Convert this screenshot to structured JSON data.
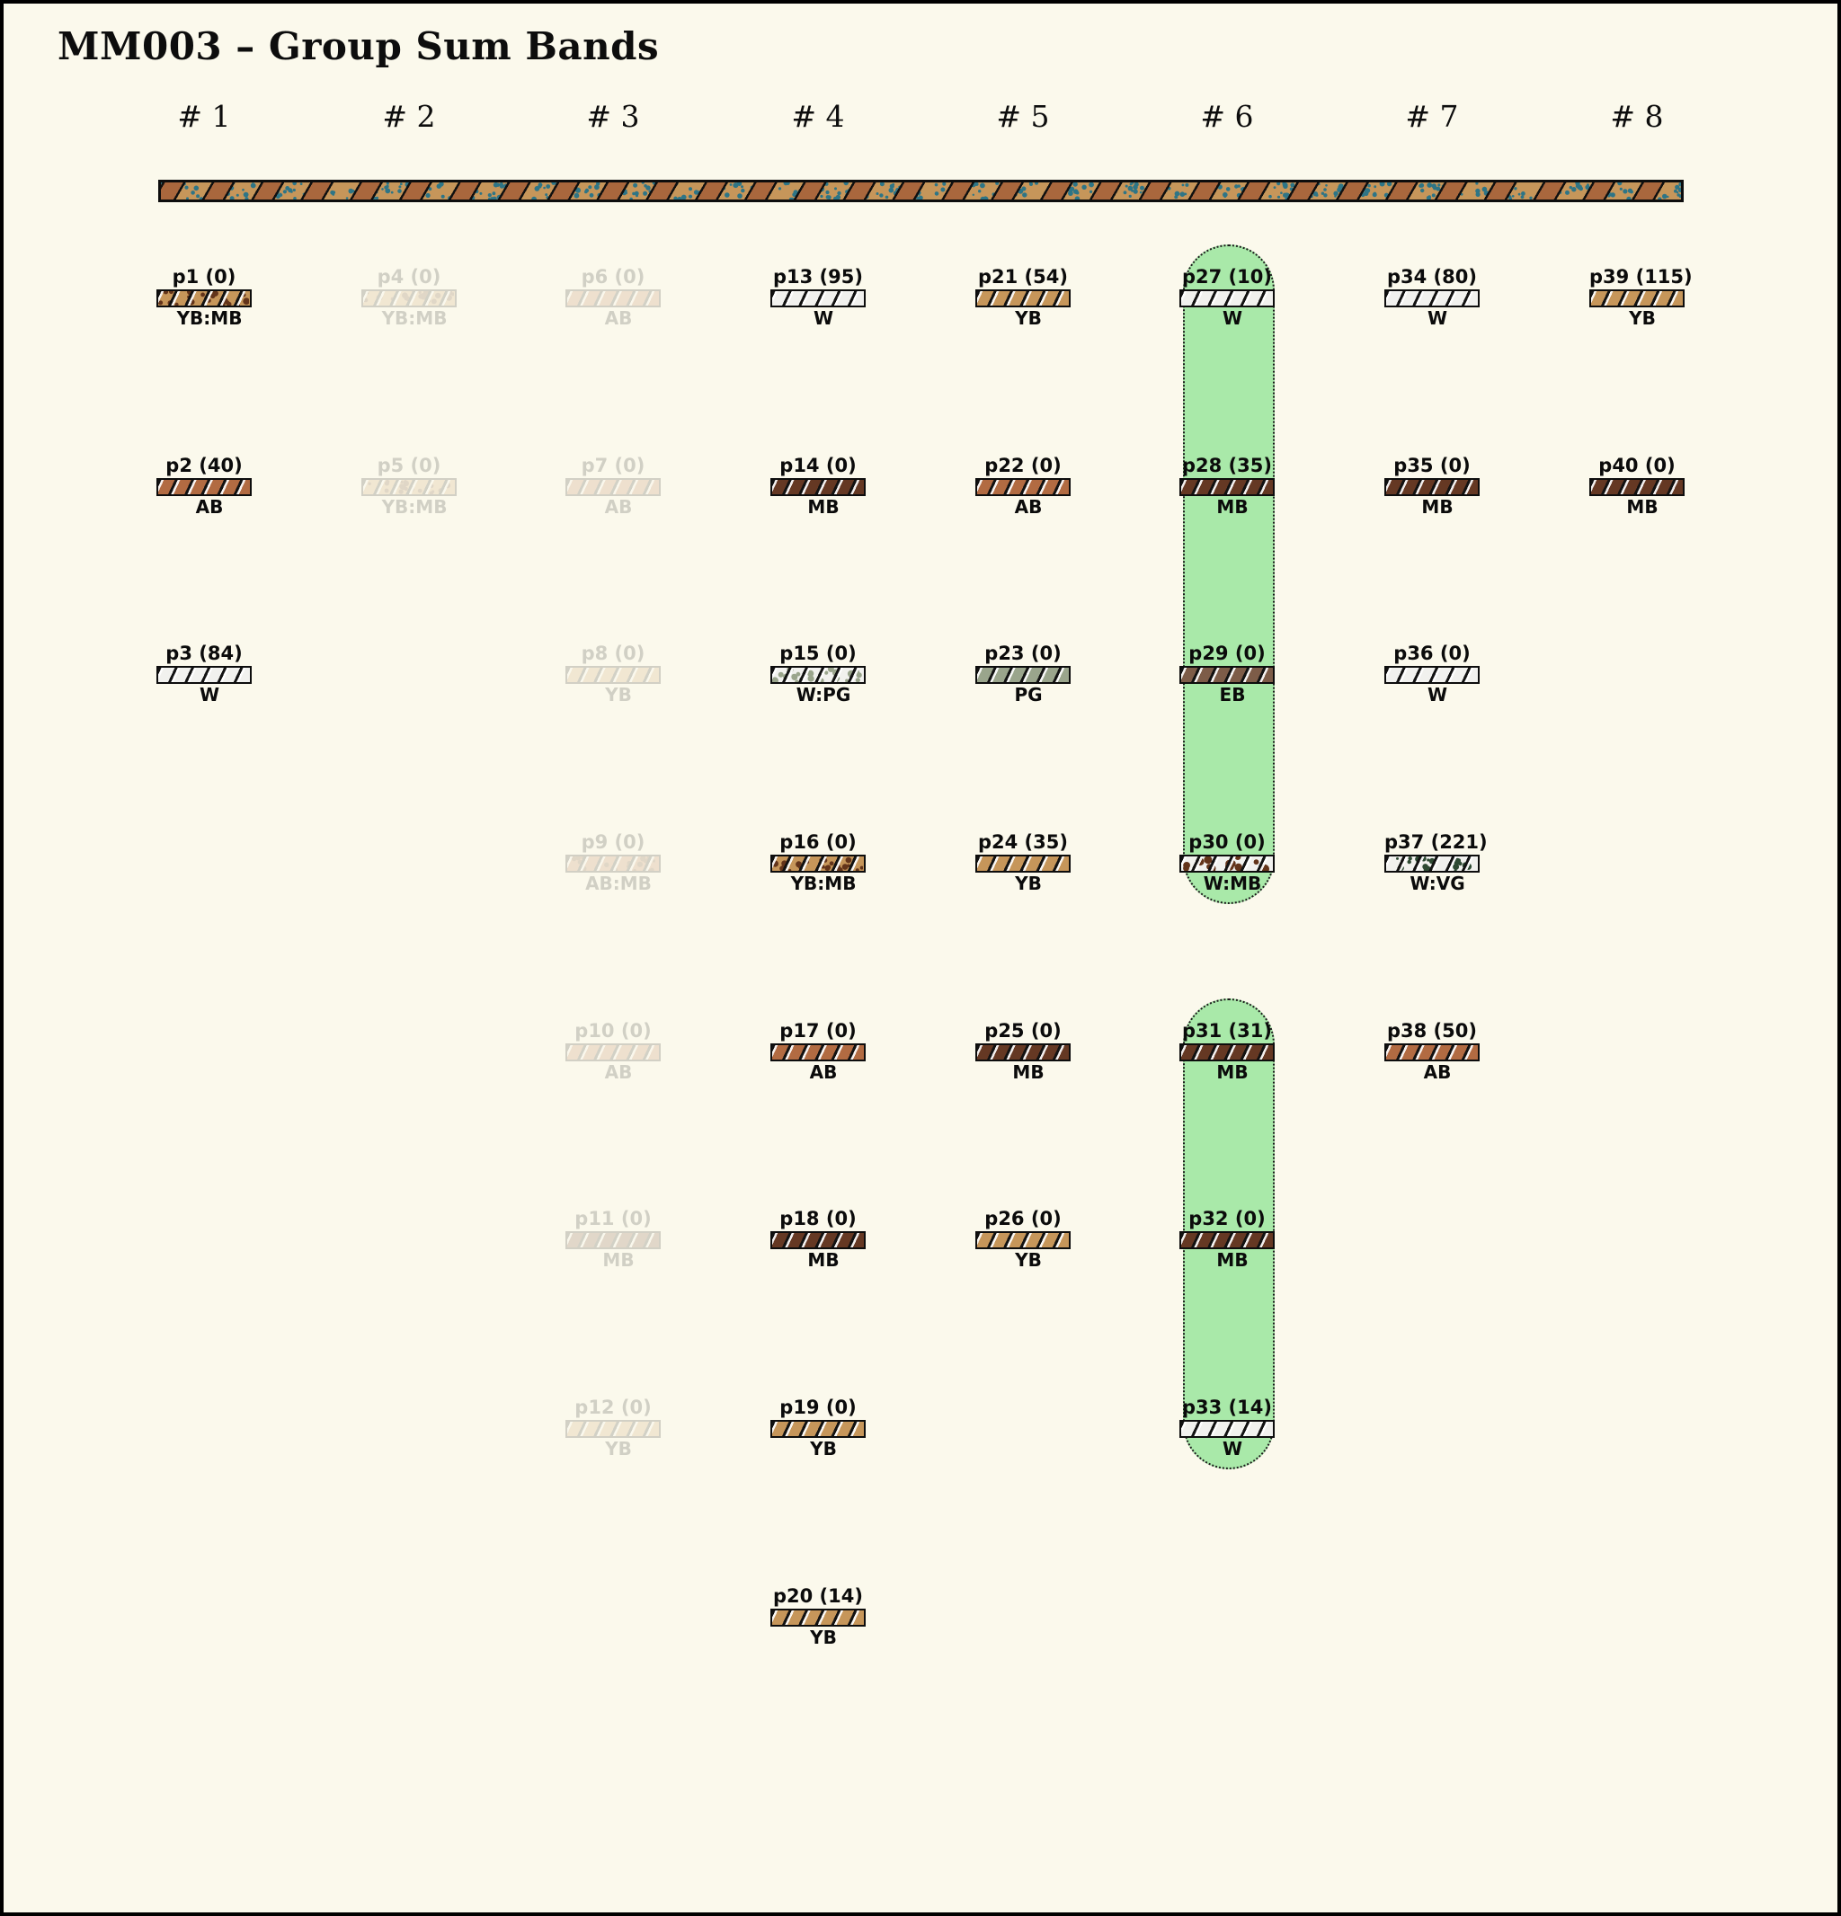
{
  "title": "MM003 – Group Sum Bands",
  "background_color": "#fbf9ec",
  "highlight": {
    "color": "#a9e9a9",
    "regions": [
      {
        "column": 6,
        "from_row": 1,
        "to_row": 4
      },
      {
        "column": 6,
        "from_row": 5,
        "to_row": 7
      }
    ]
  },
  "group_band": {
    "base": "#c6965a",
    "stripe": "#a9673d",
    "speckle": "#2e7586"
  },
  "palette": {
    "W": "#f1f1ee",
    "YB": "#c6965a",
    "AB": "#b26b42",
    "MB": "#653823",
    "EB": "#7d5c48",
    "PG": "#9aa58c",
    "VG": "#2e4a33"
  },
  "speckle_palette": {
    "MB": "#63341a",
    "PG": "#9aa58c",
    "VG": "#2e4a33"
  },
  "columns": [
    {
      "label": "# 1",
      "items": [
        {
          "id": "p1",
          "value": 0,
          "code": "YB:MB",
          "row": 1,
          "faded": false
        },
        {
          "id": "p2",
          "value": 40,
          "code": "AB",
          "row": 2,
          "faded": false
        },
        {
          "id": "p3",
          "value": 84,
          "code": "W",
          "row": 3,
          "faded": false
        }
      ]
    },
    {
      "label": "# 2",
      "items": [
        {
          "id": "p4",
          "value": 0,
          "code": "YB:MB",
          "row": 1,
          "faded": true
        },
        {
          "id": "p5",
          "value": 0,
          "code": "YB:MB",
          "row": 2,
          "faded": true
        }
      ]
    },
    {
      "label": "# 3",
      "items": [
        {
          "id": "p6",
          "value": 0,
          "code": "AB",
          "row": 1,
          "faded": true
        },
        {
          "id": "p7",
          "value": 0,
          "code": "AB",
          "row": 2,
          "faded": true
        },
        {
          "id": "p8",
          "value": 0,
          "code": "YB",
          "row": 3,
          "faded": true
        },
        {
          "id": "p9",
          "value": 0,
          "code": "AB:MB",
          "row": 4,
          "faded": true
        },
        {
          "id": "p10",
          "value": 0,
          "code": "AB",
          "row": 5,
          "faded": true
        },
        {
          "id": "p11",
          "value": 0,
          "code": "MB",
          "row": 6,
          "faded": true
        },
        {
          "id": "p12",
          "value": 0,
          "code": "YB",
          "row": 7,
          "faded": true
        }
      ]
    },
    {
      "label": "# 4",
      "items": [
        {
          "id": "p13",
          "value": 95,
          "code": "W",
          "row": 1,
          "faded": false
        },
        {
          "id": "p14",
          "value": 0,
          "code": "MB",
          "row": 2,
          "faded": false
        },
        {
          "id": "p15",
          "value": 0,
          "code": "W:PG",
          "row": 3,
          "faded": false
        },
        {
          "id": "p16",
          "value": 0,
          "code": "YB:MB",
          "row": 4,
          "faded": false
        },
        {
          "id": "p17",
          "value": 0,
          "code": "AB",
          "row": 5,
          "faded": false
        },
        {
          "id": "p18",
          "value": 0,
          "code": "MB",
          "row": 6,
          "faded": false
        },
        {
          "id": "p19",
          "value": 0,
          "code": "YB",
          "row": 7,
          "faded": false
        },
        {
          "id": "p20",
          "value": 14,
          "code": "YB",
          "row": 8,
          "faded": false
        }
      ]
    },
    {
      "label": "# 5",
      "items": [
        {
          "id": "p21",
          "value": 54,
          "code": "YB",
          "row": 1,
          "faded": false
        },
        {
          "id": "p22",
          "value": 0,
          "code": "AB",
          "row": 2,
          "faded": false
        },
        {
          "id": "p23",
          "value": 0,
          "code": "PG",
          "row": 3,
          "faded": false
        },
        {
          "id": "p24",
          "value": 35,
          "code": "YB",
          "row": 4,
          "faded": false
        },
        {
          "id": "p25",
          "value": 0,
          "code": "MB",
          "row": 5,
          "faded": false
        },
        {
          "id": "p26",
          "value": 0,
          "code": "YB",
          "row": 6,
          "faded": false
        }
      ]
    },
    {
      "label": "# 6",
      "items": [
        {
          "id": "p27",
          "value": 10,
          "code": "W",
          "row": 1,
          "faded": false
        },
        {
          "id": "p28",
          "value": 35,
          "code": "MB",
          "row": 2,
          "faded": false
        },
        {
          "id": "p29",
          "value": 0,
          "code": "EB",
          "row": 3,
          "faded": false
        },
        {
          "id": "p30",
          "value": 0,
          "code": "W:MB",
          "row": 4,
          "faded": false
        },
        {
          "id": "p31",
          "value": 31,
          "code": "MB",
          "row": 5,
          "faded": false
        },
        {
          "id": "p32",
          "value": 0,
          "code": "MB",
          "row": 6,
          "faded": false
        },
        {
          "id": "p33",
          "value": 14,
          "code": "W",
          "row": 7,
          "faded": false
        }
      ]
    },
    {
      "label": "# 7",
      "items": [
        {
          "id": "p34",
          "value": 80,
          "code": "W",
          "row": 1,
          "faded": false
        },
        {
          "id": "p35",
          "value": 0,
          "code": "MB",
          "row": 2,
          "faded": false
        },
        {
          "id": "p36",
          "value": 0,
          "code": "W",
          "row": 3,
          "faded": false
        },
        {
          "id": "p37",
          "value": 221,
          "code": "W:VG",
          "row": 4,
          "faded": false
        },
        {
          "id": "p38",
          "value": 50,
          "code": "AB",
          "row": 5,
          "faded": false
        }
      ]
    },
    {
      "label": "# 8",
      "items": [
        {
          "id": "p39",
          "value": 115,
          "code": "YB",
          "row": 1,
          "faded": false
        },
        {
          "id": "p40",
          "value": 0,
          "code": "MB",
          "row": 2,
          "faded": false
        }
      ]
    }
  ]
}
